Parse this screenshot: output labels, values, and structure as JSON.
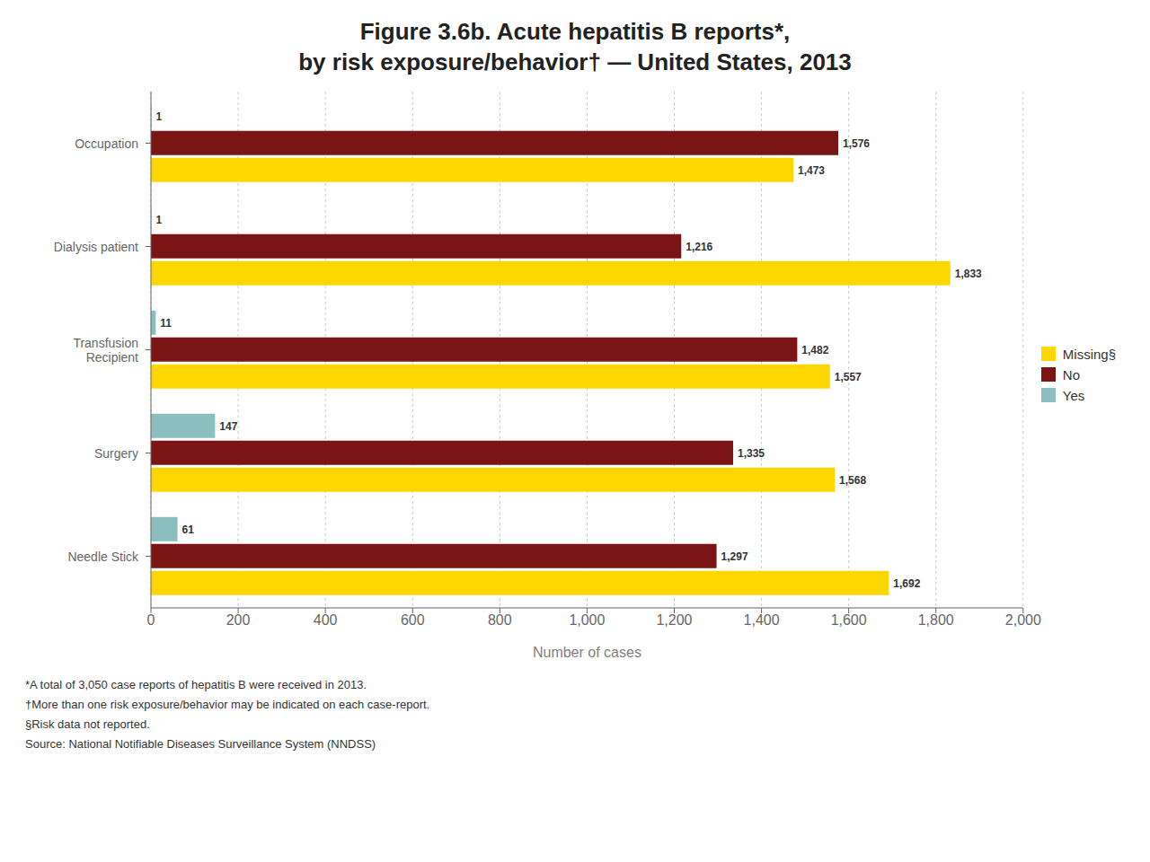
{
  "chart_data": {
    "type": "bar",
    "orientation": "horizontal",
    "title": "Figure 3.6b. Acute hepatitis B reports*,\nby risk exposure/behavior† — United States, 2013",
    "categories": [
      "Occupation",
      "Dialysis patient",
      "Transfusion\nRecipient",
      "Surgery",
      "Needle Stick"
    ],
    "series": [
      {
        "name": "Yes",
        "color": "#8BBFBF",
        "values": [
          1,
          1,
          11,
          147,
          61
        ],
        "value_labels": [
          "1",
          "1",
          "11",
          "147",
          "61"
        ]
      },
      {
        "name": "No",
        "color": "#7B1515",
        "values": [
          1576,
          1216,
          1482,
          1335,
          1297
        ],
        "value_labels": [
          "1,576",
          "1,216",
          "1,482",
          "1,335",
          "1,297"
        ]
      },
      {
        "name": "Missing§",
        "color": "#FFD700",
        "values": [
          1473,
          1833,
          1557,
          1568,
          1692
        ],
        "value_labels": [
          "1,473",
          "1,833",
          "1,557",
          "1,568",
          "1,692"
        ]
      }
    ],
    "xlabel": "Number of cases",
    "xlim": [
      0,
      2000
    ],
    "xticks": [
      0,
      200,
      400,
      600,
      800,
      {
        "value": 1000,
        "label": "1,000"
      },
      {
        "value": 1200,
        "label": "1,200"
      },
      {
        "value": 1400,
        "label": "1,400"
      },
      {
        "value": 1600,
        "label": "1,600"
      },
      {
        "value": 1800,
        "label": "1,800"
      },
      {
        "value": 2000,
        "label": "2,000"
      }
    ],
    "grid": true,
    "legend": "right",
    "data_labels": true,
    "annotations": [
      "*A total of 3,050 case reports of hepatitis B were received in 2013.",
      "†More than one risk exposure/behavior may be indicated on each case-report.",
      "§Risk data not reported.",
      "Source: National Notifiable Diseases Surveillance System (NNDSS)"
    ]
  }
}
